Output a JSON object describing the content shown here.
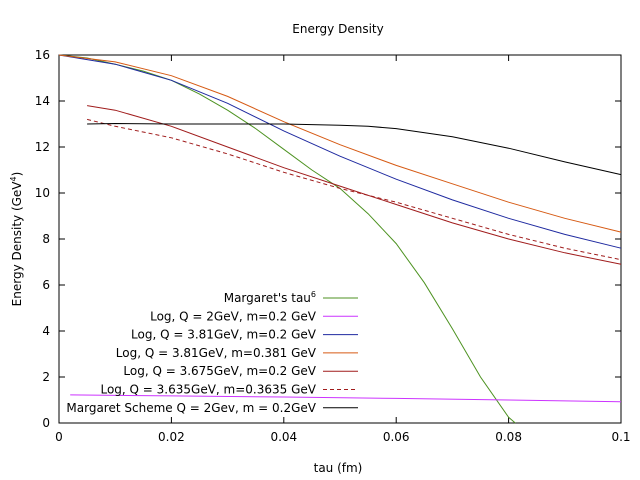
{
  "chart_data": {
    "type": "line",
    "title": "Energy Density",
    "xlabel": "tau (fm)",
    "ylabel": "Energy Density (GeV^4)",
    "ylabel_main": "Energy Density (GeV",
    "ylabel_sup": "4",
    "ylabel_close": ")",
    "xlim": [
      0,
      0.1
    ],
    "ylim": [
      0,
      16
    ],
    "xticks": [
      0,
      0.02,
      0.04,
      0.06,
      0.08,
      0.1
    ],
    "xtick_labels": [
      "0",
      "0.02",
      "0.04",
      "0.06",
      "0.08",
      "0.1"
    ],
    "yticks": [
      0,
      2,
      4,
      6,
      8,
      10,
      12,
      14,
      16
    ],
    "ytick_labels": [
      "0",
      "2",
      "4",
      "6",
      "8",
      "10",
      "12",
      "14",
      "16"
    ],
    "grid": false,
    "legend_position": "bottom-left",
    "series": [
      {
        "name": "Margaret's tau",
        "name_sup": "6",
        "color": "#4d9221",
        "dash": "solid",
        "x": [
          0,
          0.005,
          0.01,
          0.015,
          0.02,
          0.025,
          0.03,
          0.035,
          0.04,
          0.045,
          0.05,
          0.055,
          0.06,
          0.065,
          0.07,
          0.075,
          0.08,
          0.0812
        ],
        "y": [
          16.0,
          15.87,
          15.6,
          15.3,
          14.9,
          14.3,
          13.6,
          12.8,
          11.9,
          11.0,
          10.2,
          9.1,
          7.8,
          6.1,
          4.1,
          2.0,
          0.25,
          0.0
        ]
      },
      {
        "name": "Log, Q = 2GeV, m=0.2 GeV",
        "color": "#cc33ff",
        "dash": "solid",
        "x": [
          0.002,
          0.02,
          0.04,
          0.06,
          0.08,
          0.1
        ],
        "y": [
          1.22,
          1.18,
          1.13,
          1.07,
          1.0,
          0.92
        ]
      },
      {
        "name": "Log, Q = 3.81GeV, m=0.2 GeV",
        "color": "#1f2aa0",
        "dash": "solid",
        "x": [
          0,
          0.01,
          0.02,
          0.03,
          0.04,
          0.05,
          0.06,
          0.07,
          0.08,
          0.09,
          0.1
        ],
        "y": [
          16.0,
          15.6,
          14.9,
          13.9,
          12.7,
          11.6,
          10.6,
          9.7,
          8.9,
          8.2,
          7.6
        ]
      },
      {
        "name": "Log, Q = 3.81GeV, m=0.381 GeV",
        "color": "#d65a14",
        "dash": "solid",
        "x": [
          0,
          0.01,
          0.02,
          0.03,
          0.04,
          0.05,
          0.06,
          0.07,
          0.08,
          0.09,
          0.1
        ],
        "y": [
          16.0,
          15.7,
          15.1,
          14.2,
          13.1,
          12.1,
          11.2,
          10.4,
          9.6,
          8.9,
          8.3
        ]
      },
      {
        "name": "Log, Q = 3.675GeV, m=0.2 GeV",
        "color": "#a01c1c",
        "dash": "solid",
        "x": [
          0.005,
          0.01,
          0.02,
          0.03,
          0.04,
          0.05,
          0.06,
          0.07,
          0.08,
          0.09,
          0.1
        ],
        "y": [
          13.8,
          13.6,
          12.9,
          12.0,
          11.1,
          10.3,
          9.5,
          8.7,
          8.0,
          7.4,
          6.9
        ]
      },
      {
        "name": "Log, Q = 3.635GeV, m=0.3635 GeV",
        "color": "#a01c1c",
        "dash": "dashed",
        "x": [
          0.005,
          0.01,
          0.02,
          0.03,
          0.04,
          0.05,
          0.06,
          0.07,
          0.08,
          0.09,
          0.1
        ],
        "y": [
          13.2,
          12.9,
          12.4,
          11.7,
          10.9,
          10.2,
          9.6,
          8.9,
          8.2,
          7.6,
          7.1
        ]
      },
      {
        "name": "Margaret Scheme Q = 2Gev, m = 0.2GeV",
        "color": "#000000",
        "dash": "solid",
        "x": [
          0.005,
          0.01,
          0.02,
          0.03,
          0.04,
          0.05,
          0.055,
          0.06,
          0.07,
          0.08,
          0.09,
          0.1
        ],
        "y": [
          13.0,
          13.02,
          13.0,
          13.0,
          13.0,
          12.95,
          12.9,
          12.8,
          12.45,
          11.95,
          11.35,
          10.8
        ]
      }
    ]
  }
}
